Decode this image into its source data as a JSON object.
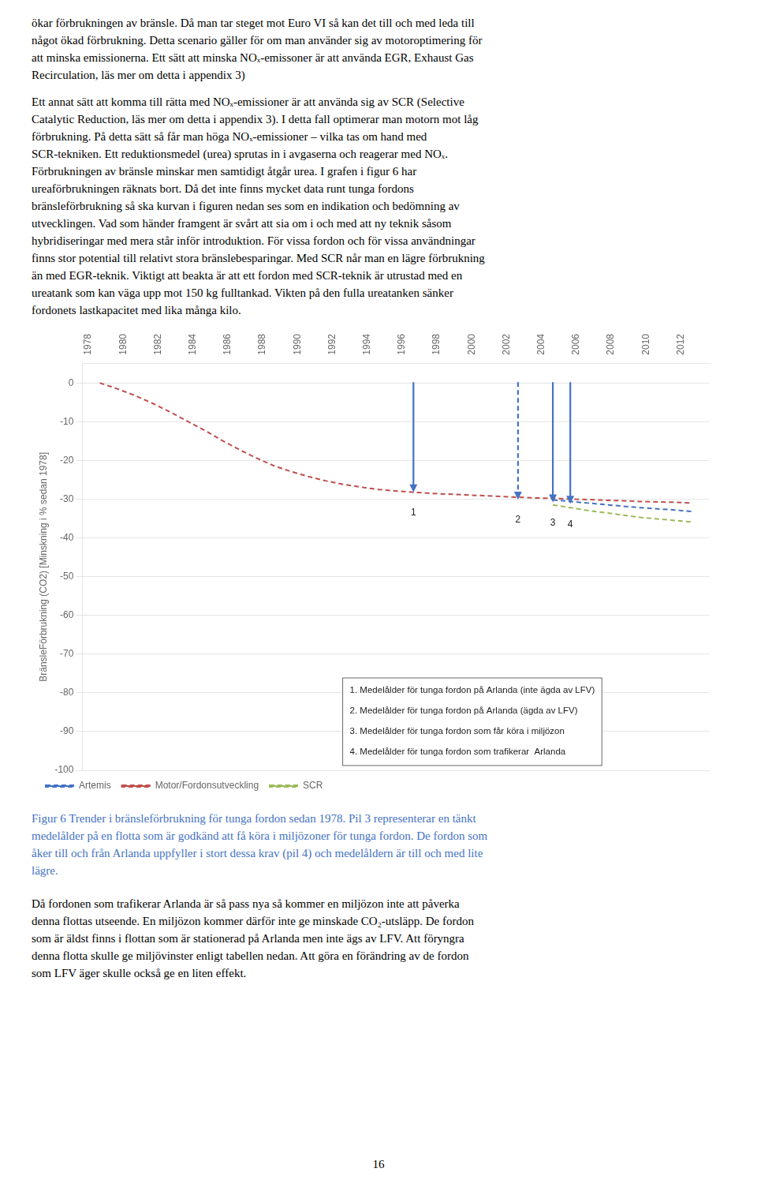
{
  "chart_data": {
    "type": "line",
    "text_above": [
      [
        "ökar förbrukningen av bränsle. Då man tar steget mot Euro VI så kan det till och med leda till",
        "något ökad förbrukning. Detta scenario gäller för om man använder sig av motoroptimering för",
        "att minska emissionerna. Ett sätt att minska NOₓ-emissoner är att använda EGR, Exhaust Gas",
        "Recirculation, läs mer om detta i appendix 3)"
      ],
      [
        "Ett annat sätt att komma till rätta med NOₓ-emissioner är att använda sig av SCR (Selective",
        "Catalytic Reduction, läs mer om detta i appendix 3). I detta fall optimerar man motorn mot låg",
        "förbrukning. På detta sätt så får man höga NOₓ-emissioner – vilka tas om hand med",
        "SCR-tekniken. Ett reduktionsmedel (urea) sprutas in i avgaserna och reagerar med NOₓ.",
        "Förbrukningen av bränsle minskar men samtidigt åtgår urea. I grafen i figur 6 har",
        "ureaförbrukningen räknats bort. Då det inte finns mycket data runt tunga fordons",
        "bränsleförbrukning så ska kurvan i figuren nedan ses som en indikation och bedömning av",
        "utvecklingen. Vad som händer framgent är svårt att sia om i och med att ny teknik såsom",
        "hybridiseringar med mera står inför introduktion. För vissa fordon och för vissa användningar",
        "finns stor potential till relativt stora bränslebesparingar. Med SCR når man en lägre förbrukning",
        "än med EGR-teknik. Viktigt att beakta är att ett fordon med SCR-teknik är utrustad med en",
        "ureatank som kan väga upp mot 150 kg fulltankad. Vikten på den fulla ureatanken sänker",
        "fordonets lastkapacitet med lika många kilo."
      ]
    ],
    "ylabel": "BränsleFörbrukning (CO2) [Minskning i % sedan 1978]",
    "series": [
      {
        "name": "Artemis",
        "color": "#4472C4",
        "line_style": "dashed",
        "x": [
          2004,
          2005,
          2006,
          2007,
          2008,
          2009,
          2010,
          2011,
          2012
        ],
        "values": [
          -30.2,
          -30.6,
          -31.0,
          -31.4,
          -31.8,
          -32.2,
          -32.5,
          -32.8,
          -33.2
        ]
      },
      {
        "name": "Motor/Fordonsutveckling",
        "color": "#C0504D",
        "line_style": "dashed",
        "x": [
          1978,
          1979,
          1980,
          1981,
          1982,
          1983,
          1984,
          1985,
          1986,
          1987,
          1988,
          1989,
          1990,
          1991,
          1992,
          1993,
          1994,
          1995,
          1996,
          1997,
          1998,
          1999,
          2000,
          2001,
          2002,
          2003,
          2004,
          2005,
          2006,
          2007,
          2008,
          2009,
          2010,
          2011,
          2012
        ],
        "values": [
          0,
          -1.5,
          -3.2,
          -5.2,
          -7.4,
          -9.8,
          -12.2,
          -14.8,
          -17.2,
          -19.4,
          -21.4,
          -22.9,
          -24.2,
          -25.3,
          -26.2,
          -26.9,
          -27.5,
          -27.9,
          -28.2,
          -28.5,
          -28.7,
          -28.9,
          -29.1,
          -29.3,
          -29.5,
          -29.7,
          -29.8,
          -30.0,
          -30.1,
          -30.3,
          -30.4,
          -30.6,
          -30.7,
          -30.8,
          -31.0
        ]
      },
      {
        "name": "SCR",
        "color": "#9BBB59",
        "line_style": "dashed",
        "x": [
          2004,
          2005,
          2006,
          2007,
          2008,
          2009,
          2010,
          2011,
          2012
        ],
        "values": [
          -31.5,
          -32.2,
          -32.9,
          -33.5,
          -34.1,
          -34.7,
          -35.1,
          -35.5,
          -35.9
        ]
      }
    ],
    "xlim": [
      1977,
      2013
    ],
    "xticks": [
      1978,
      1980,
      1982,
      1984,
      1986,
      1988,
      1990,
      1992,
      1994,
      1996,
      1998,
      2000,
      2002,
      2004,
      2006,
      2008,
      2010,
      2012
    ],
    "ylim": [
      -100,
      5
    ],
    "yticks": [
      0,
      -10,
      -20,
      -30,
      -40,
      -50,
      -60,
      -70,
      -80,
      -90,
      -100
    ],
    "grid": "y",
    "legend": "lower left",
    "annotations": [
      {
        "type": "arrow",
        "x": 1996,
        "y_start": 0.2,
        "y_end": -28.2,
        "text": "1",
        "color": "#4472C4",
        "line_style": "solid"
      },
      {
        "type": "arrow",
        "x": 2002,
        "y_start": 0.2,
        "y_end": -30.1,
        "text": "2",
        "color": "#4472C4",
        "line_style": "dashed"
      },
      {
        "type": "arrow",
        "x": 2004,
        "y_start": 0.2,
        "y_end": -30.8,
        "text": "3",
        "color": "#4472C4",
        "line_style": "solid"
      },
      {
        "type": "arrow",
        "x": 2005,
        "y_start": 0.2,
        "y_end": -31.2,
        "text": "4",
        "color": "#4472C4",
        "line_style": "solid"
      }
    ],
    "notes": [
      "1. Medelålder för tunga fordon på Arlanda (inte ägda av LFV)",
      "2. Medelålder för tunga fordon på Arlanda (ägda av LFV)",
      "3. Medelålder för tunga fordon som får köra i miljözon",
      "4. Medelålder för tunga fordon som trafikerar  Arlanda"
    ],
    "caption": {
      "color": "#4472C4",
      "lines": [
        "Figur 6 Trender i bränsleförbrukning för tunga fordon sedan 1978. Pil 3 representerar en tänkt",
        "medelålder på en flotta som är godkänd att få köra i miljözoner för tunga fordon. De fordon som",
        "åker till och från Arlanda uppfyller i stort dessa krav (pil 4) och medelåldern är till och med lite",
        "lägre."
      ]
    },
    "text_below": [
      "Då fordonen som trafikerar Arlanda är så pass nya så kommer en miljözon inte att påverka",
      "denna flottas utseende. En miljözon kommer därför inte ge minskade CO₂-utsläpp. De fordon",
      "som är äldst finns i flottan som är stationerad på Arlanda men inte ägs av LFV. Att föryngra",
      "denna flotta skulle ge miljövinster enligt tabellen nedan. Att göra en förändring av de fordon",
      "som LFV äger skulle också ge en liten effekt."
    ],
    "page_number": "16"
  }
}
